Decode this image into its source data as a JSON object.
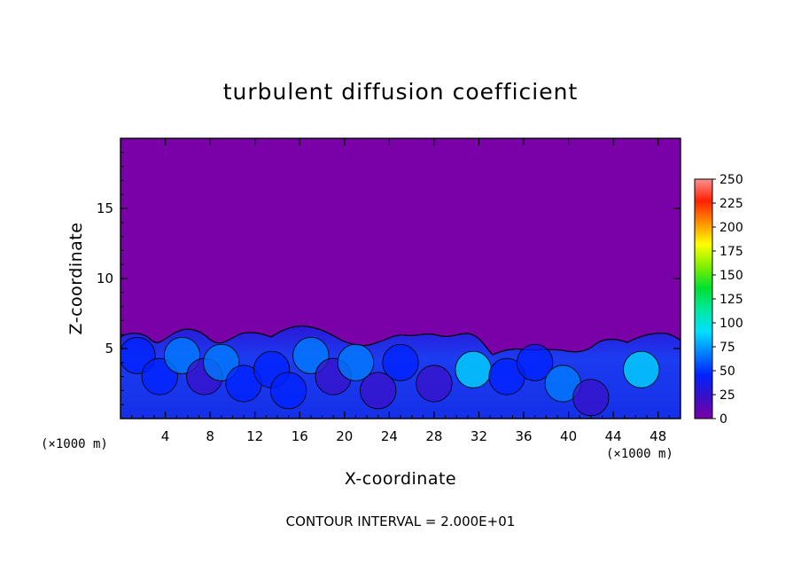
{
  "chart_data": {
    "type": "heatmap",
    "title": "turbulent diffusion coefficient",
    "xlabel": "X-coordinate",
    "ylabel": "Z-coordinate",
    "x_unit": "(×1000 m)",
    "y_unit": "(×1000 m)",
    "footer": "CONTOUR INTERVAL = 2.000E+01",
    "xlim": [
      0,
      50
    ],
    "ylim": [
      0,
      20
    ],
    "x_ticks": [
      4,
      8,
      12,
      16,
      20,
      24,
      28,
      32,
      36,
      40,
      44,
      48
    ],
    "y_ticks": [
      5,
      10,
      15
    ],
    "colorbar": {
      "min": 0,
      "max": 250,
      "ticks": [
        0,
        25,
        50,
        75,
        100,
        125,
        150,
        175,
        200,
        225,
        250
      ],
      "colors": [
        "#7a00a8",
        "#3a10c8",
        "#0022ff",
        "#0080ff",
        "#00e0ff",
        "#00e8a0",
        "#00e030",
        "#80f000",
        "#ffff00",
        "#ff9000",
        "#ff2000",
        "#ff9090"
      ]
    },
    "contour_interval": 20,
    "background_value": 0,
    "turbulent_layer_top_approx": 6,
    "cells": [
      {
        "x": 1.5,
        "z": 4.5,
        "value": 55
      },
      {
        "x": 3.5,
        "z": 3.0,
        "value": 40
      },
      {
        "x": 5.5,
        "z": 4.5,
        "value": 70
      },
      {
        "x": 7.5,
        "z": 3.0,
        "value": 30
      },
      {
        "x": 9.0,
        "z": 4.0,
        "value": 60
      },
      {
        "x": 11.0,
        "z": 2.5,
        "value": 35
      },
      {
        "x": 13.5,
        "z": 3.5,
        "value": 55
      },
      {
        "x": 15.0,
        "z": 2.0,
        "value": 40
      },
      {
        "x": 17.0,
        "z": 4.5,
        "value": 65
      },
      {
        "x": 19.0,
        "z": 3.0,
        "value": 30
      },
      {
        "x": 21.0,
        "z": 4.0,
        "value": 60
      },
      {
        "x": 23.0,
        "z": 2.0,
        "value": 30
      },
      {
        "x": 25.0,
        "z": 4.0,
        "value": 45
      },
      {
        "x": 28.0,
        "z": 2.5,
        "value": 25
      },
      {
        "x": 31.5,
        "z": 3.5,
        "value": 80
      },
      {
        "x": 34.5,
        "z": 3.0,
        "value": 55
      },
      {
        "x": 37.0,
        "z": 4.0,
        "value": 45
      },
      {
        "x": 39.5,
        "z": 2.5,
        "value": 60
      },
      {
        "x": 42.0,
        "z": 1.5,
        "value": 30
      },
      {
        "x": 46.5,
        "z": 3.5,
        "value": 90
      }
    ]
  }
}
